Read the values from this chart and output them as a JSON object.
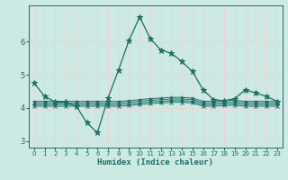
{
  "xlabel": "Humidex (Indice chaleur)",
  "bg_color": "#cce9e4",
  "grid_color": "#e8f5f2",
  "line_color": "#1a6e62",
  "xlim": [
    -0.5,
    23.5
  ],
  "ylim": [
    2.8,
    7.1
  ],
  "xticks": [
    0,
    1,
    2,
    3,
    4,
    5,
    6,
    7,
    8,
    9,
    10,
    11,
    12,
    13,
    14,
    15,
    16,
    17,
    18,
    19,
    20,
    21,
    22,
    23
  ],
  "yticks": [
    3,
    4,
    5,
    6
  ],
  "lines": [
    {
      "x": [
        0,
        1,
        2,
        3,
        4,
        5,
        6,
        7,
        8,
        9,
        10,
        11,
        12,
        13,
        14,
        15,
        16,
        17,
        18,
        19,
        20,
        21,
        22,
        23
      ],
      "y": [
        4.75,
        4.35,
        4.18,
        4.18,
        4.05,
        3.55,
        3.25,
        4.3,
        5.15,
        6.05,
        6.75,
        6.1,
        5.75,
        5.65,
        5.4,
        5.1,
        4.55,
        4.25,
        4.22,
        4.28,
        4.55,
        4.45,
        4.35,
        4.2
      ]
    },
    {
      "x": [
        0,
        1,
        2,
        3,
        4,
        5,
        6,
        7,
        8,
        9,
        10,
        11,
        12,
        13,
        14,
        15,
        16,
        17,
        18,
        19,
        20,
        21,
        22,
        23
      ],
      "y": [
        4.2,
        4.2,
        4.2,
        4.2,
        4.2,
        4.2,
        4.2,
        4.2,
        4.2,
        4.22,
        4.25,
        4.28,
        4.3,
        4.32,
        4.32,
        4.3,
        4.2,
        4.2,
        4.22,
        4.23,
        4.2,
        4.2,
        4.2,
        4.2
      ]
    },
    {
      "x": [
        0,
        1,
        2,
        3,
        4,
        5,
        6,
        7,
        8,
        9,
        10,
        11,
        12,
        13,
        14,
        15,
        16,
        17,
        18,
        19,
        20,
        21,
        22,
        23
      ],
      "y": [
        4.15,
        4.15,
        4.15,
        4.15,
        4.15,
        4.15,
        4.15,
        4.15,
        4.15,
        4.17,
        4.2,
        4.23,
        4.25,
        4.27,
        4.27,
        4.25,
        4.15,
        4.15,
        4.17,
        4.18,
        4.15,
        4.15,
        4.15,
        4.15
      ]
    },
    {
      "x": [
        0,
        1,
        2,
        3,
        4,
        5,
        6,
        7,
        8,
        9,
        10,
        11,
        12,
        13,
        14,
        15,
        16,
        17,
        18,
        19,
        20,
        21,
        22,
        23
      ],
      "y": [
        4.1,
        4.1,
        4.1,
        4.1,
        4.1,
        4.1,
        4.1,
        4.1,
        4.1,
        4.12,
        4.15,
        4.18,
        4.2,
        4.22,
        4.22,
        4.2,
        4.1,
        4.1,
        4.12,
        4.13,
        4.1,
        4.1,
        4.1,
        4.1
      ]
    },
    {
      "x": [
        0,
        1,
        2,
        3,
        4,
        5,
        6,
        7,
        8,
        9,
        10,
        11,
        12,
        13,
        14,
        15,
        16,
        17,
        18,
        19,
        20,
        21,
        22,
        23
      ],
      "y": [
        4.05,
        4.05,
        4.05,
        4.05,
        4.05,
        4.05,
        4.05,
        4.05,
        4.05,
        4.07,
        4.1,
        4.13,
        4.15,
        4.17,
        4.17,
        4.15,
        4.05,
        4.05,
        4.07,
        4.08,
        4.05,
        4.05,
        4.05,
        4.05
      ]
    }
  ]
}
